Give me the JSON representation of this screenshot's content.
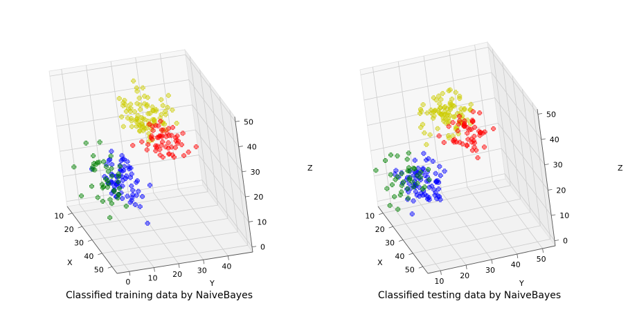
{
  "chart_data": [
    {
      "type": "scatter",
      "title": "Classified training data by NaiveBayes",
      "xlabel": "X",
      "ylabel": "Y",
      "zlabel": "Z",
      "x_ticks": [
        "10",
        "20",
        "30",
        "40",
        "50"
      ],
      "y_ticks": [
        "0",
        "10",
        "20",
        "30",
        "40"
      ],
      "z_ticks": [
        "0",
        "10",
        "20",
        "30",
        "40",
        "50"
      ],
      "xlim": [
        5,
        55
      ],
      "ylim": [
        -5,
        50
      ],
      "zlim": [
        -2,
        52
      ],
      "grid": true,
      "marker": "P",
      "series": [
        {
          "color": "#0000ff",
          "center": [
            30,
            10,
            20
          ],
          "spread": [
            4,
            4,
            4
          ],
          "n": 70
        },
        {
          "color": "#008000",
          "center": [
            30,
            3,
            22
          ],
          "spread": [
            6,
            4,
            5
          ],
          "n": 42
        },
        {
          "color": "#cccc00",
          "center": [
            25,
            25,
            40
          ],
          "spread": [
            4,
            5,
            4
          ],
          "n": 85
        },
        {
          "color": "#ff0000",
          "center": [
            28,
            30,
            32
          ],
          "spread": [
            3,
            4,
            3
          ],
          "n": 55
        }
      ]
    },
    {
      "type": "scatter",
      "title": "Classified testing data by NaiveBayes",
      "xlabel": "X",
      "ylabel": "Y",
      "zlabel": "Z",
      "x_ticks": [
        "10",
        "20",
        "30",
        "40",
        "50"
      ],
      "y_ticks": [
        "10",
        "20",
        "30",
        "40",
        "50"
      ],
      "z_ticks": [
        "0",
        "10",
        "20",
        "30",
        "40",
        "50"
      ],
      "xlim": [
        5,
        55
      ],
      "ylim": [
        5,
        55
      ],
      "zlim": [
        -2,
        52
      ],
      "grid": true,
      "marker": "P",
      "series": [
        {
          "color": "#0000ff",
          "center": [
            30,
            15,
            20
          ],
          "spread": [
            4,
            4,
            4
          ],
          "n": 75
        },
        {
          "color": "#008000",
          "center": [
            30,
            8,
            22
          ],
          "spread": [
            6,
            4,
            5
          ],
          "n": 38
        },
        {
          "color": "#cccc00",
          "center": [
            25,
            30,
            40
          ],
          "spread": [
            4,
            5,
            4
          ],
          "n": 85
        },
        {
          "color": "#ff0000",
          "center": [
            28,
            35,
            32
          ],
          "spread": [
            3,
            4,
            3
          ],
          "n": 50
        }
      ]
    }
  ]
}
